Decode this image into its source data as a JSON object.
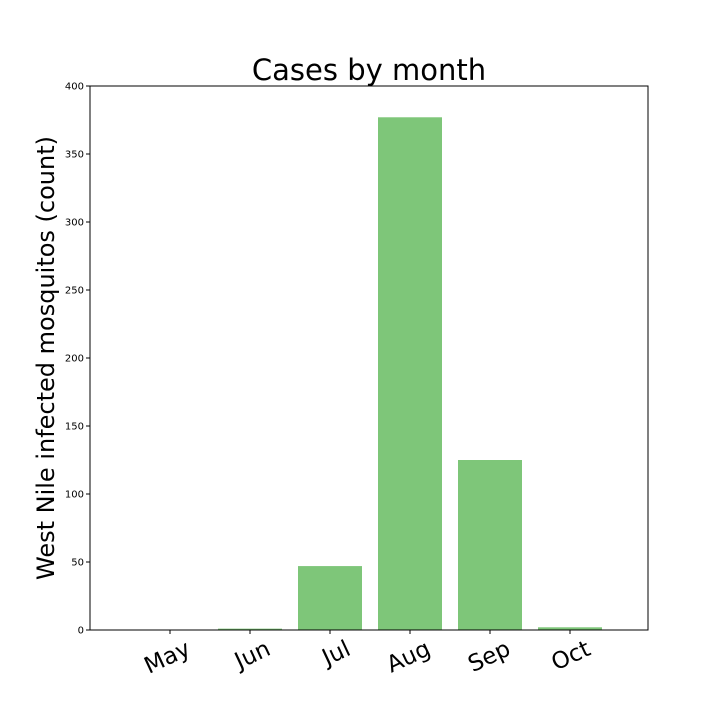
{
  "chart_data": {
    "type": "bar",
    "title": "Cases by month",
    "xlabel": "",
    "ylabel": "West Nile infected mosquitos (count)",
    "categories": [
      "May",
      "Jun",
      "Jul",
      "Aug",
      "Sep",
      "Oct"
    ],
    "values": [
      0,
      1,
      47,
      377,
      125,
      2
    ],
    "ylim": [
      0,
      400
    ],
    "yticks": [
      "0",
      "50",
      "100",
      "150",
      "200",
      "250",
      "300",
      "350",
      "400"
    ],
    "bar_color": "#7ec679",
    "grid": false,
    "legend": "none"
  }
}
